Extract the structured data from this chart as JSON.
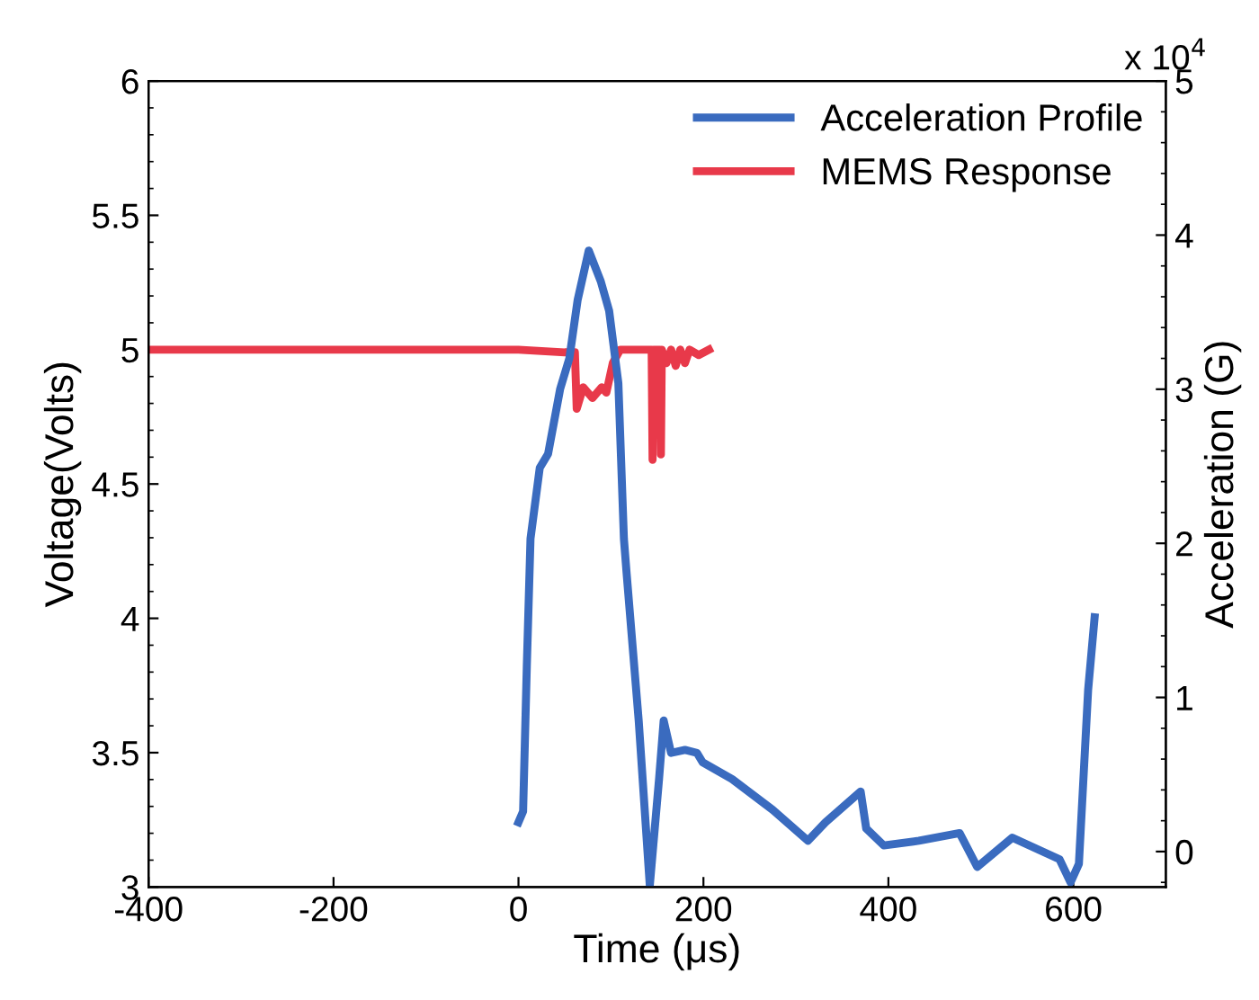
{
  "chart_data": {
    "type": "line",
    "xlabel": "Time (μs)",
    "ylabel": "Voltage(Volts)",
    "y2label": "Acceleration (G)",
    "xlim": [
      -400,
      700
    ],
    "xticks": [
      -400,
      -200,
      0,
      200,
      400,
      600
    ],
    "ylim": [
      3,
      6
    ],
    "yticks": [
      3,
      3.5,
      4,
      4.5,
      5,
      5.5,
      6
    ],
    "y2lim": [
      -0.23,
      5
    ],
    "y2ticks": [
      0,
      1,
      2,
      3,
      4,
      5
    ],
    "annotations": [
      "x 10$^{4}$"
    ],
    "legend": "top right",
    "grid": false,
    "series": [
      {
        "name": "Acceleration Profile",
        "color": "#3a6bbf",
        "axis": "y2",
        "x": [
          0,
          5,
          9,
          13,
          23,
          32,
          45,
          55,
          64,
          76,
          89,
          98,
          108,
          114,
          117,
          130,
          142,
          152,
          157,
          165,
          180,
          193,
          199,
          231,
          275,
          313,
          332,
          370,
          376,
          395,
          433,
          477,
          496,
          534,
          585,
          597,
          606,
          616,
          623
        ],
        "values": [
          0.19,
          0.26,
          1.2,
          2.03,
          2.49,
          2.58,
          3.0,
          3.2,
          3.58,
          3.9,
          3.7,
          3.51,
          3.04,
          2.03,
          1.8,
          0.85,
          -0.22,
          0.47,
          0.85,
          0.64,
          0.66,
          0.64,
          0.58,
          0.47,
          0.27,
          0.07,
          0.19,
          0.39,
          0.15,
          0.04,
          0.07,
          0.12,
          -0.1,
          0.09,
          -0.05,
          -0.2,
          -0.08,
          1.05,
          1.52
        ]
      },
      {
        "name": "MEMS Response",
        "color": "#e8394a",
        "axis": "y",
        "x": [
          -400,
          -300,
          -200,
          -100,
          0,
          50,
          61,
          63,
          70,
          80,
          90,
          95,
          102,
          110,
          130,
          144,
          145,
          146,
          150,
          153,
          154,
          155,
          160,
          165,
          170,
          175,
          180,
          185,
          195,
          206
        ],
        "values": [
          5.0,
          5.0,
          5.0,
          5.0,
          5.0,
          4.99,
          4.99,
          4.78,
          4.86,
          4.82,
          4.86,
          4.84,
          4.95,
          5.0,
          5.0,
          5.0,
          4.59,
          5.0,
          5.0,
          5.0,
          4.61,
          5.0,
          4.95,
          5.0,
          4.94,
          5.0,
          4.95,
          5.0,
          4.98,
          5.0
        ]
      }
    ]
  }
}
